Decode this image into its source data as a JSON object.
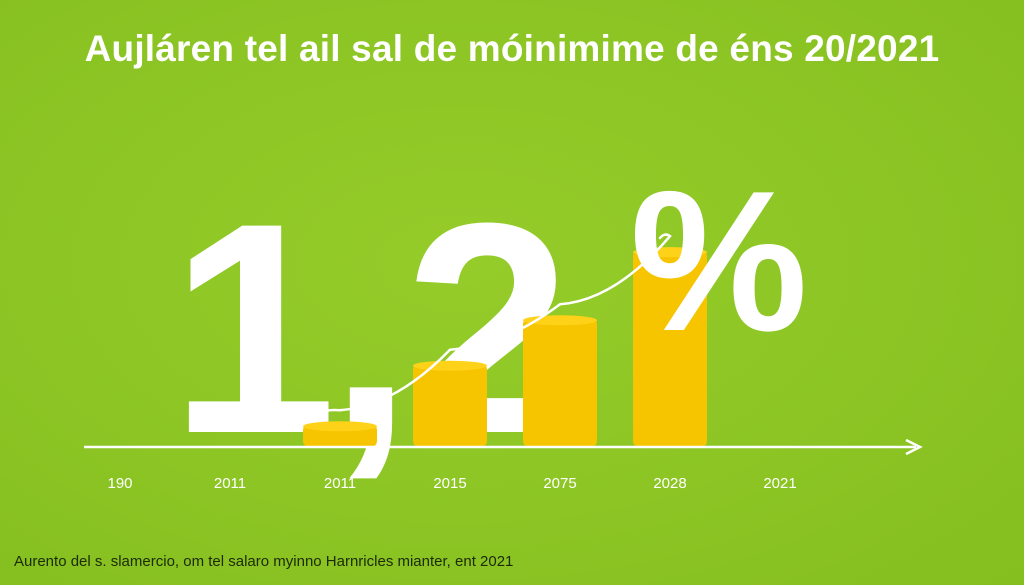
{
  "title": "Aujláren tel ail sal de móinimime de éns 20/2021",
  "footnote": "Aurento del s. slamercio, om tel salaro myinno  Harnricles mianter, ent 2021",
  "colors": {
    "background": "#8cc524",
    "bar": "#f7c400",
    "axis": "#ffffff",
    "text": "#ffffff",
    "tick_text": "#ffffff",
    "footnote": "#1c2a05"
  },
  "chart_data": {
    "type": "bar",
    "title": "Aujláren tel ail sal de móinimime de éns 20/2021",
    "categories": [
      "190",
      "2011",
      "2011",
      "2015",
      "2075",
      "2028",
      "2021"
    ],
    "values": [
      null,
      null,
      0.15,
      0.55,
      0.85,
      1.3,
      null
    ],
    "ylim": [
      0,
      1.4
    ],
    "overlay_value_text": "1,2",
    "overlay_unit_text": "%",
    "trend_line": true,
    "grid": false,
    "legend": "none"
  }
}
